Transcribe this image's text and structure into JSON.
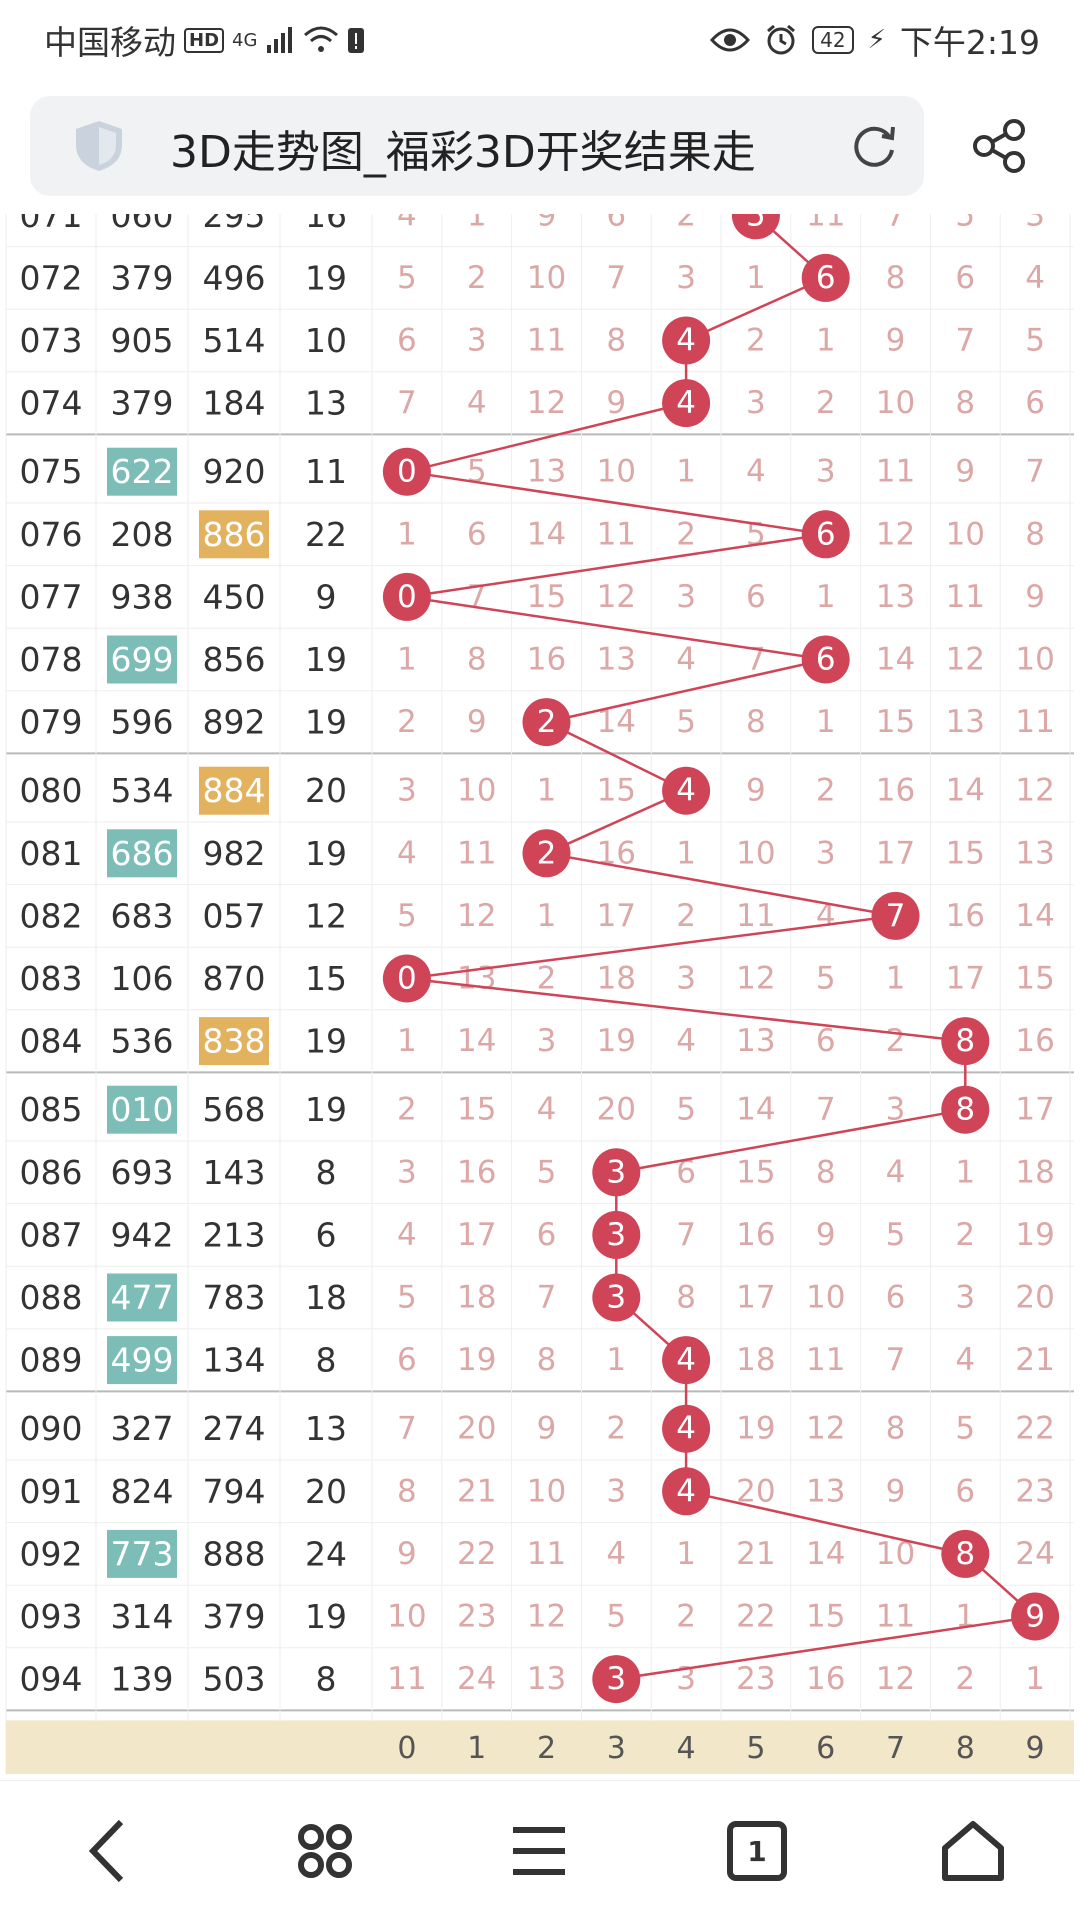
{
  "status_bar": {
    "carrier": "中国移动",
    "hd": "HD",
    "network": "4G",
    "battery": "42",
    "time": "下午2:19"
  },
  "browser": {
    "title": "3D走势图_福彩3D开奖结果走"
  },
  "colors": {
    "ball": "#d04458",
    "line": "#d04458",
    "miss_text": "#dca7a7",
    "teal_highlight": "#7dbdb8",
    "orange_highlight": "#e3b25f",
    "footer_bg": "#f3e7c9"
  },
  "icons": [
    "shield-icon",
    "reload-icon",
    "share-icon",
    "back-icon",
    "apps-icon",
    "menu-icon",
    "tabs-icon",
    "home-icon"
  ],
  "tabs_count": "1",
  "chart_data": {
    "type": "table",
    "digit_headers": [
      "0",
      "1",
      "2",
      "3",
      "4",
      "5",
      "6",
      "7",
      "8",
      "9"
    ],
    "top_partial_row": {
      "period": "071",
      "draw": "060",
      "trial": "295",
      "sum": "16",
      "cells": [
        "4",
        "1",
        "9",
        "6",
        "2",
        "5",
        "11",
        "7",
        "5",
        "3"
      ],
      "hit": 5
    },
    "rows": [
      {
        "period": "072",
        "draw": "379",
        "trial": "496",
        "sum": "19",
        "cells": [
          "5",
          "2",
          "10",
          "7",
          "3",
          "1",
          "6",
          "8",
          "6",
          "4"
        ],
        "hit": 6
      },
      {
        "period": "073",
        "draw": "905",
        "trial": "514",
        "sum": "10",
        "cells": [
          "6",
          "3",
          "11",
          "8",
          "4",
          "2",
          "1",
          "9",
          "7",
          "5"
        ],
        "hit": 4
      },
      {
        "period": "074",
        "draw": "379",
        "trial": "184",
        "sum": "13",
        "cells": [
          "7",
          "4",
          "12",
          "9",
          "4",
          "3",
          "2",
          "10",
          "8",
          "6"
        ],
        "hit": 4
      },
      {
        "period": "075",
        "draw": "622",
        "trial": "920",
        "sum": "11",
        "cells": [
          "0",
          "5",
          "13",
          "10",
          "1",
          "4",
          "3",
          "11",
          "9",
          "7"
        ],
        "hit": 0,
        "draw_hl": "teal"
      },
      {
        "period": "076",
        "draw": "208",
        "trial": "886",
        "sum": "22",
        "cells": [
          "1",
          "6",
          "14",
          "11",
          "2",
          "5",
          "6",
          "12",
          "10",
          "8"
        ],
        "hit": 6,
        "trial_hl": "orange"
      },
      {
        "period": "077",
        "draw": "938",
        "trial": "450",
        "sum": "9",
        "cells": [
          "0",
          "7",
          "15",
          "12",
          "3",
          "6",
          "1",
          "13",
          "11",
          "9"
        ],
        "hit": 0
      },
      {
        "period": "078",
        "draw": "699",
        "trial": "856",
        "sum": "19",
        "cells": [
          "1",
          "8",
          "16",
          "13",
          "4",
          "7",
          "6",
          "14",
          "12",
          "10"
        ],
        "hit": 6,
        "draw_hl": "teal"
      },
      {
        "period": "079",
        "draw": "596",
        "trial": "892",
        "sum": "19",
        "cells": [
          "2",
          "9",
          "2",
          "14",
          "5",
          "8",
          "1",
          "15",
          "13",
          "11"
        ],
        "hit": 2
      },
      {
        "period": "080",
        "draw": "534",
        "trial": "884",
        "sum": "20",
        "cells": [
          "3",
          "10",
          "1",
          "15",
          "4",
          "9",
          "2",
          "16",
          "14",
          "12"
        ],
        "hit": 4,
        "trial_hl": "orange"
      },
      {
        "period": "081",
        "draw": "686",
        "trial": "982",
        "sum": "19",
        "cells": [
          "4",
          "11",
          "2",
          "16",
          "1",
          "10",
          "3",
          "17",
          "15",
          "13"
        ],
        "hit": 2,
        "draw_hl": "teal"
      },
      {
        "period": "082",
        "draw": "683",
        "trial": "057",
        "sum": "12",
        "cells": [
          "5",
          "12",
          "1",
          "17",
          "2",
          "11",
          "4",
          "7",
          "16",
          "14"
        ],
        "hit": 7
      },
      {
        "period": "083",
        "draw": "106",
        "trial": "870",
        "sum": "15",
        "cells": [
          "0",
          "13",
          "2",
          "18",
          "3",
          "12",
          "5",
          "1",
          "17",
          "15"
        ],
        "hit": 0
      },
      {
        "period": "084",
        "draw": "536",
        "trial": "838",
        "sum": "19",
        "cells": [
          "1",
          "14",
          "3",
          "19",
          "4",
          "13",
          "6",
          "2",
          "8",
          "16"
        ],
        "hit": 8,
        "trial_hl": "orange"
      },
      {
        "period": "085",
        "draw": "010",
        "trial": "568",
        "sum": "19",
        "cells": [
          "2",
          "15",
          "4",
          "20",
          "5",
          "14",
          "7",
          "3",
          "8",
          "17"
        ],
        "hit": 8,
        "draw_hl": "teal"
      },
      {
        "period": "086",
        "draw": "693",
        "trial": "143",
        "sum": "8",
        "cells": [
          "3",
          "16",
          "5",
          "3",
          "6",
          "15",
          "8",
          "4",
          "1",
          "18"
        ],
        "hit": 3
      },
      {
        "period": "087",
        "draw": "942",
        "trial": "213",
        "sum": "6",
        "cells": [
          "4",
          "17",
          "6",
          "3",
          "7",
          "16",
          "9",
          "5",
          "2",
          "19"
        ],
        "hit": 3
      },
      {
        "period": "088",
        "draw": "477",
        "trial": "783",
        "sum": "18",
        "cells": [
          "5",
          "18",
          "7",
          "3",
          "8",
          "17",
          "10",
          "6",
          "3",
          "20"
        ],
        "hit": 3,
        "draw_hl": "teal"
      },
      {
        "period": "089",
        "draw": "499",
        "trial": "134",
        "sum": "8",
        "cells": [
          "6",
          "19",
          "8",
          "1",
          "4",
          "18",
          "11",
          "7",
          "4",
          "21"
        ],
        "hit": 4,
        "draw_hl": "teal"
      },
      {
        "period": "090",
        "draw": "327",
        "trial": "274",
        "sum": "13",
        "cells": [
          "7",
          "20",
          "9",
          "2",
          "4",
          "19",
          "12",
          "8",
          "5",
          "22"
        ],
        "hit": 4
      },
      {
        "period": "091",
        "draw": "824",
        "trial": "794",
        "sum": "20",
        "cells": [
          "8",
          "21",
          "10",
          "3",
          "4",
          "20",
          "13",
          "9",
          "6",
          "23"
        ],
        "hit": 4
      },
      {
        "period": "092",
        "draw": "773",
        "trial": "888",
        "sum": "24",
        "cells": [
          "9",
          "22",
          "11",
          "4",
          "1",
          "21",
          "14",
          "10",
          "8",
          "24"
        ],
        "hit": 8,
        "draw_hl": "teal"
      },
      {
        "period": "093",
        "draw": "314",
        "trial": "379",
        "sum": "19",
        "cells": [
          "10",
          "23",
          "12",
          "5",
          "2",
          "22",
          "15",
          "11",
          "1",
          "9"
        ],
        "hit": 9
      },
      {
        "period": "094",
        "draw": "139",
        "trial": "503",
        "sum": "8",
        "cells": [
          "11",
          "24",
          "13",
          "3",
          "3",
          "23",
          "16",
          "12",
          "2",
          "1"
        ],
        "hit": 3
      }
    ]
  }
}
